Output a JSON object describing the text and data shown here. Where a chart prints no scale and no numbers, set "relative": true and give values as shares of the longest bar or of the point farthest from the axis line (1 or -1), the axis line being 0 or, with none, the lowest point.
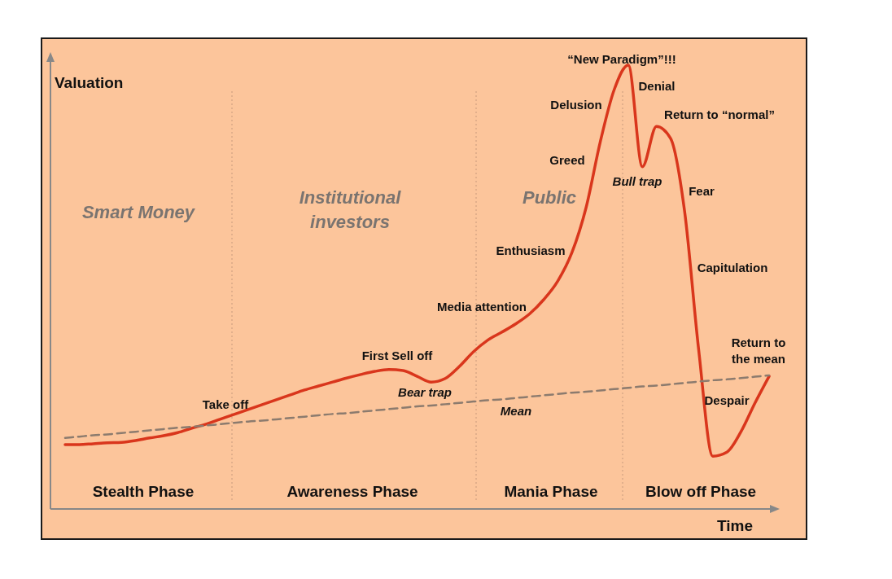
{
  "chart_data": {
    "type": "line",
    "relative": true,
    "xlabel": "Time",
    "ylabel": "Valuation",
    "categories": [
      null,
      null,
      null,
      null,
      null,
      null,
      null,
      null,
      null,
      null,
      null,
      null,
      null,
      null,
      null,
      null,
      null,
      null,
      null,
      null,
      null,
      null,
      null,
      null,
      null,
      null,
      null,
      null,
      null,
      null,
      null,
      null,
      null,
      null,
      null,
      null,
      null,
      null,
      null,
      null,
      null,
      null,
      null,
      null,
      null,
      null,
      null,
      null,
      null,
      null,
      null
    ],
    "series": [
      {
        "color": "#d9361c",
        "line_style": "solid",
        "values": [
          0.145,
          0.145,
          0.147,
          0.149,
          0.15,
          0.154,
          0.16,
          0.165,
          0.172,
          0.182,
          0.191,
          0.202,
          0.213,
          0.224,
          0.235,
          0.246,
          0.257,
          0.268,
          0.277,
          0.286,
          0.295,
          0.303,
          0.31,
          0.314,
          0.312,
          0.299,
          0.286,
          0.294,
          0.321,
          0.354,
          0.38,
          0.398,
          0.417,
          0.44,
          0.472,
          0.514,
          0.578,
          0.679,
          0.826,
          0.945,
          1,
          0.771,
          0.862,
          0.835,
          0.67,
          0.358,
          0.119,
          0.128,
          0.174,
          0.239,
          0.299
        ]
      },
      {
        "color": "#8c7b6e",
        "line_style": "dashed",
        "values": [
          0.16,
          0.163,
          0.166,
          0.168,
          0.171,
          0.174,
          0.177,
          0.18,
          0.183,
          0.185,
          0.188,
          0.191,
          0.194,
          0.197,
          0.199,
          0.202,
          0.205,
          0.208,
          0.211,
          0.214,
          0.216,
          0.219,
          0.222,
          0.225,
          0.228,
          0.231,
          0.233,
          0.236,
          0.239,
          0.242,
          0.245,
          0.247,
          0.25,
          0.253,
          0.256,
          0.259,
          0.262,
          0.264,
          0.267,
          0.27,
          0.273,
          0.276,
          0.278,
          0.281,
          0.284,
          0.287,
          0.29,
          0.292,
          0.295,
          0.298,
          0.301
        ]
      }
    ],
    "annotations": [
      "Smart Money",
      "Institutional investors",
      "Public",
      "Stealth Phase",
      "Awareness Phase",
      "Mania Phase",
      "Blow off Phase",
      "Take off",
      "First Sell off",
      "Bear trap",
      "Mean",
      "Media attention",
      "Enthusiasm",
      "Greed",
      "Delusion",
      "“New Paradigm”!!!",
      "Denial",
      "Return to “normal”",
      "Bull trap",
      "Fear",
      "Capitulation",
      "Return to the mean",
      "Despair"
    ]
  }
}
